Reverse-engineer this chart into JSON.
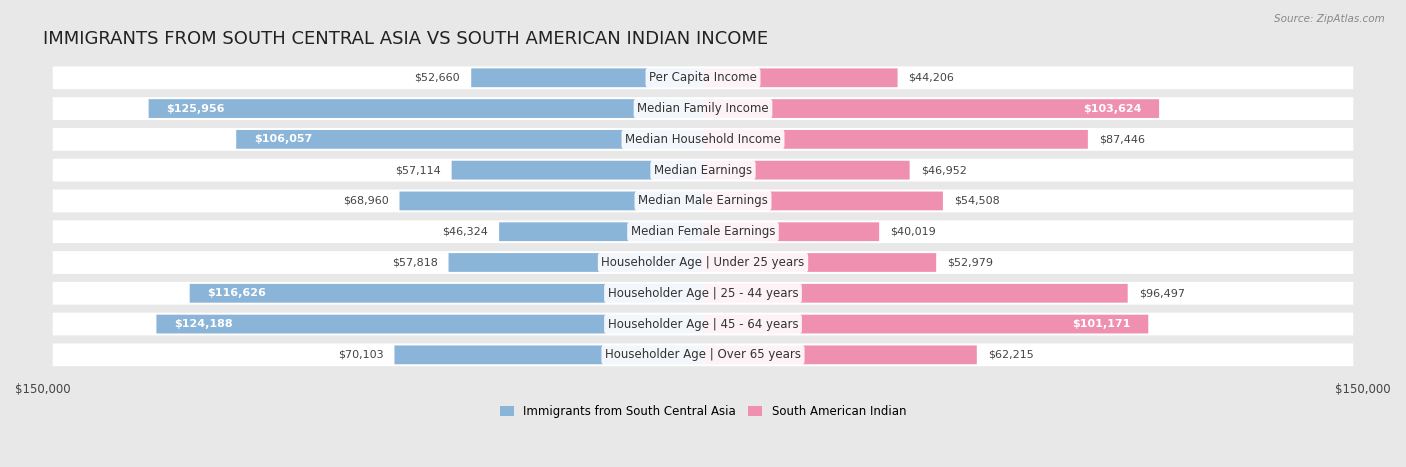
{
  "title": "IMMIGRANTS FROM SOUTH CENTRAL ASIA VS SOUTH AMERICAN INDIAN INCOME",
  "source": "Source: ZipAtlas.com",
  "categories": [
    "Per Capita Income",
    "Median Family Income",
    "Median Household Income",
    "Median Earnings",
    "Median Male Earnings",
    "Median Female Earnings",
    "Householder Age | Under 25 years",
    "Householder Age | 25 - 44 years",
    "Householder Age | 45 - 64 years",
    "Householder Age | Over 65 years"
  ],
  "left_values": [
    52660,
    125956,
    106057,
    57114,
    68960,
    46324,
    57818,
    116626,
    124188,
    70103
  ],
  "right_values": [
    44206,
    103624,
    87446,
    46952,
    54508,
    40019,
    52979,
    96497,
    101171,
    62215
  ],
  "left_color": "#8ab4d8",
  "right_color": "#f090b0",
  "left_label": "Immigrants from South Central Asia",
  "right_label": "South American Indian",
  "xlim": 150000,
  "fig_bg_color": "#e8e8e8",
  "row_bg_color": "#ffffff",
  "title_fontsize": 13,
  "label_fontsize": 8.5,
  "value_fontsize": 8,
  "axis_label_fontsize": 8.5,
  "inside_threshold": 100000
}
